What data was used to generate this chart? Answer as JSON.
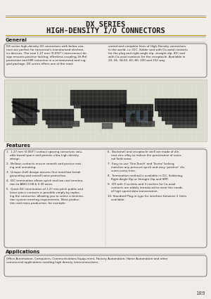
{
  "title_line1": "DX SERIES",
  "title_line2": "HIGH-DENSITY I/O CONNECTORS",
  "page_bg": "#f0ede8",
  "section_general_title": "General",
  "section_features_title": "Features",
  "section_applications_title": "Applications",
  "applications_text": "Office Automation, Computers, Communications Equipment, Factory Automation, Home Automation and other commercial applications needing high density interconnections.",
  "page_number": "189",
  "title_color": "#1a1a1a",
  "header_line_color": "#b8922a",
  "box_border_color": "#555555",
  "section_title_color": "#1a1a1a",
  "text_color": "#222222",
  "general_text_left": "DX series high-density I/O connectors with below connector are perfect for tomorrow's miniaturized electronics devices. The new 1.27 mm (0.050\") interconnect design ensures positive locking, effortless coupling, Hi-Rel protection and EMI reduction in a miniaturized and rugged package. DX series offers one of the most",
  "general_text_right": "varied and complete lines of High-Density connectors in the world, i.e. IDC, Solder and with Co-axial contacts for the plug and right angle dip, straight dip, IDC and with Co-axial contacts for the receptacle. Available in 20, 26, 34,50, 60, 80, 100 and 152 way.",
  "feature_texts_left": [
    "1.  1.27 mm (0.050\") contact spacing conserves valu-\n    able board space and permits ultra-high density\n    design.",
    "2.  Bellows contacts ensure smooth and precise mat-\n    ing and unmating.",
    "3.  Unique shell design assures first mate/last break\n    grounding and overall noise protection.",
    "4.  IDC termination allows quick and low cost termina-\n    tion to AWG 0.08 & 0.30 wires.",
    "5.  Quick IDC termination of 1.27 mm pitch public and\n    loose piece contacts is possible simply by replac-\n    ing the connector, allowing you to select a termina-\n    tion system meeting requirements. Mass produc-\n    tion and mass production, for example."
  ],
  "feature_texts_right": [
    "6.  Backshell and receptacle shell are made of die-\n    cast zinc alloy to reduce the penetration of exter-\n    nal field noise.",
    "7.  Easy to use 'One-Touch' and 'Screw' locking\n    matches any pressure quick and easy 'positive' clo-\n    sures every time.",
    "8.  Termination method is available in IDC, Soldering,\n    Right Angle Dip or Straight Dip and SMT.",
    "9.  DX with 3 sockets and 3 cavities for Co-axial\n    contacts are widely introduced to meet the needs\n    of high speed data transmission.",
    "10. Standard Plug-in type for interface between 2 Units\n    available."
  ]
}
